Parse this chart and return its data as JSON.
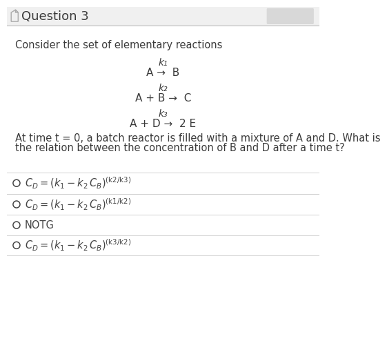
{
  "title": "Question 3",
  "bg_color": "#ffffff",
  "header_bg": "#f0f0f0",
  "text_color": "#3a3a3a",
  "body_text": "Consider the set of elementary reactions",
  "reaction1_above": "k₁",
  "reaction1": "A →  B",
  "reaction2_above": "k₂",
  "reaction2": "A + B →  C",
  "reaction3_above": "k₃",
  "reaction3": "A + D →  2 E",
  "question_line1": "At time t = 0, a batch reactor is filled with a mixture of A and D. What is",
  "question_line2": "the relation between the concentration of B and D after a time t?",
  "option_superscripts": [
    "(k2 / k3)",
    "(k1 / k2)",
    "",
    "(k3 / k2)"
  ],
  "divider_color": "#d0d0d0",
  "option_text_color": "#444444",
  "header_line_color": "#bbbbbb",
  "header_bg_color": "#f0f0f0",
  "badge_color": "#d8d8d8",
  "icon_color": "#aaaaaa"
}
